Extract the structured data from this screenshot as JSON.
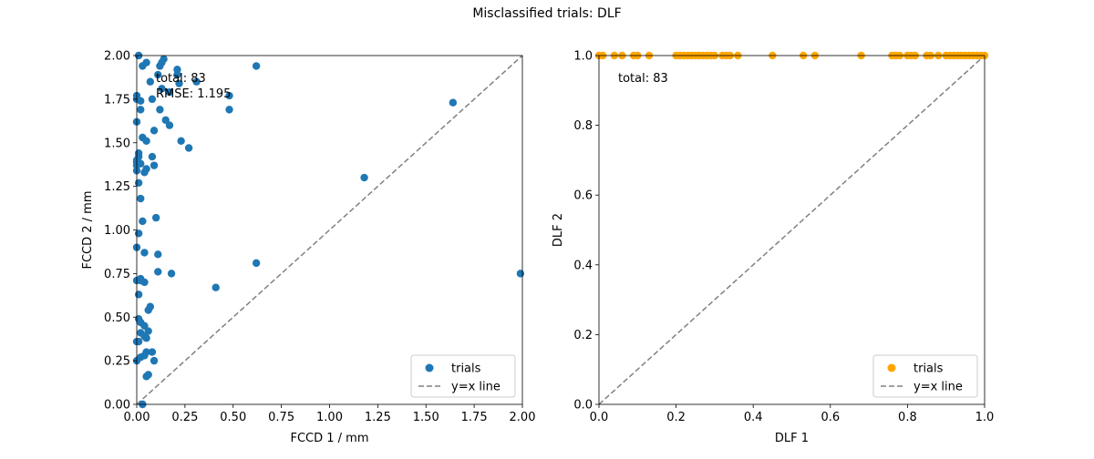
{
  "figure_title": "Misclassified trials: DLF",
  "chart_data": [
    {
      "type": "scatter",
      "xlabel": "FCCD 1 / mm",
      "ylabel": "FCCD 2 / mm",
      "xlim": [
        0,
        2
      ],
      "ylim": [
        0,
        2
      ],
      "xticks": [
        "0.00",
        "0.25",
        "0.50",
        "0.75",
        "1.00",
        "1.25",
        "1.50",
        "1.75",
        "2.00"
      ],
      "yticks": [
        "0.00",
        "0.25",
        "0.50",
        "0.75",
        "1.00",
        "1.25",
        "1.50",
        "1.75",
        "2.00"
      ],
      "annotations": [
        "total: 83",
        "RMSE: 1.195"
      ],
      "legend": {
        "position": "lower-right",
        "entries": [
          "trials",
          "y=x line"
        ]
      },
      "grid": false,
      "colors": {
        "series": "#1f77b4",
        "reference_line": "#808080"
      },
      "series": [
        {
          "name": "trials",
          "points": [
            [
              0.01,
              2.0
            ],
            [
              0.03,
              1.94
            ],
            [
              0.05,
              1.96
            ],
            [
              0.13,
              1.96
            ],
            [
              0.14,
              1.98
            ],
            [
              0.12,
              1.94
            ],
            [
              0.21,
              1.92
            ],
            [
              0.21,
              1.89
            ],
            [
              0.11,
              1.89
            ],
            [
              0.62,
              1.94
            ],
            [
              0.31,
              1.85
            ],
            [
              0.22,
              1.84
            ],
            [
              0.07,
              1.85
            ],
            [
              0.13,
              1.81
            ],
            [
              0.17,
              1.79
            ],
            [
              0.48,
              1.77
            ],
            [
              0.0,
              1.77
            ],
            [
              0.02,
              1.74
            ],
            [
              0.08,
              1.75
            ],
            [
              0.12,
              1.69
            ],
            [
              0.48,
              1.69
            ],
            [
              1.64,
              1.73
            ],
            [
              0.02,
              1.69
            ],
            [
              0.15,
              1.63
            ],
            [
              0.17,
              1.6
            ],
            [
              0.0,
              1.62
            ],
            [
              0.09,
              1.57
            ],
            [
              0.03,
              1.53
            ],
            [
              0.05,
              1.51
            ],
            [
              0.23,
              1.51
            ],
            [
              0.27,
              1.47
            ],
            [
              0.01,
              1.44
            ],
            [
              0.01,
              1.42
            ],
            [
              0.08,
              1.42
            ],
            [
              0.02,
              1.38
            ],
            [
              0.0,
              1.4
            ],
            [
              0.09,
              1.37
            ],
            [
              0.05,
              1.35
            ],
            [
              0.04,
              1.33
            ],
            [
              0.0,
              1.34
            ],
            [
              1.18,
              1.3
            ],
            [
              0.01,
              1.27
            ],
            [
              0.02,
              1.18
            ],
            [
              0.1,
              1.07
            ],
            [
              0.03,
              1.05
            ],
            [
              0.01,
              0.98
            ],
            [
              0.0,
              0.9
            ],
            [
              0.11,
              0.86
            ],
            [
              0.04,
              0.87
            ],
            [
              0.62,
              0.81
            ],
            [
              0.11,
              0.76
            ],
            [
              0.18,
              0.75
            ],
            [
              1.99,
              0.75
            ],
            [
              0.02,
              0.72
            ],
            [
              0.04,
              0.7
            ],
            [
              0.41,
              0.67
            ],
            [
              0.01,
              0.63
            ],
            [
              0.07,
              0.56
            ],
            [
              0.06,
              0.54
            ],
            [
              0.01,
              0.49
            ],
            [
              0.02,
              0.47
            ],
            [
              0.04,
              0.45
            ],
            [
              0.06,
              0.42
            ],
            [
              0.02,
              0.41
            ],
            [
              0.04,
              0.39
            ],
            [
              0.05,
              0.38
            ],
            [
              0.01,
              0.36
            ],
            [
              0.08,
              0.3
            ],
            [
              0.05,
              0.3
            ],
            [
              0.04,
              0.28
            ],
            [
              0.02,
              0.27
            ],
            [
              0.09,
              0.25
            ],
            [
              0.0,
              0.25
            ],
            [
              0.06,
              0.17
            ],
            [
              0.05,
              0.16
            ],
            [
              0.03,
              0.0
            ],
            [
              0.0,
              0.36
            ],
            [
              0.0,
              0.71
            ],
            [
              0.02,
              0.71
            ],
            [
              0.0,
              1.75
            ],
            [
              0.0,
              1.39
            ],
            [
              0.0,
              1.37
            ],
            [
              0.03,
              0.0
            ]
          ]
        }
      ],
      "reference_line": {
        "name": "y=x line",
        "points": [
          [
            0,
            0
          ],
          [
            2,
            2
          ]
        ]
      }
    },
    {
      "type": "scatter",
      "xlabel": "DLF 1",
      "ylabel": "DLF 2",
      "xlim": [
        0,
        1
      ],
      "ylim": [
        0,
        1
      ],
      "xticks": [
        "0.0",
        "0.2",
        "0.4",
        "0.6",
        "0.8",
        "1.0"
      ],
      "yticks": [
        "0.0",
        "0.2",
        "0.4",
        "0.6",
        "0.8",
        "1.0"
      ],
      "annotations": [
        "total: 83"
      ],
      "legend": {
        "position": "lower-right",
        "entries": [
          "trials",
          "y=x line"
        ]
      },
      "grid": false,
      "colors": {
        "series": "#ffa500",
        "reference_line": "#808080"
      },
      "series": [
        {
          "name": "trials",
          "points": [
            [
              0.0,
              1.0
            ],
            [
              0.01,
              1.0
            ],
            [
              0.04,
              1.0
            ],
            [
              0.06,
              1.0
            ],
            [
              0.09,
              1.0
            ],
            [
              0.1,
              1.0
            ],
            [
              0.13,
              1.0
            ],
            [
              0.2,
              1.0
            ],
            [
              0.21,
              1.0
            ],
            [
              0.22,
              1.0
            ],
            [
              0.23,
              1.0
            ],
            [
              0.24,
              1.0
            ],
            [
              0.25,
              1.0
            ],
            [
              0.26,
              1.0
            ],
            [
              0.27,
              1.0
            ],
            [
              0.28,
              1.0
            ],
            [
              0.29,
              1.0
            ],
            [
              0.3,
              1.0
            ],
            [
              0.32,
              1.0
            ],
            [
              0.33,
              1.0
            ],
            [
              0.34,
              1.0
            ],
            [
              0.36,
              1.0
            ],
            [
              0.45,
              1.0
            ],
            [
              0.53,
              1.0
            ],
            [
              0.56,
              1.0
            ],
            [
              0.68,
              1.0
            ],
            [
              0.76,
              1.0
            ],
            [
              0.77,
              1.0
            ],
            [
              0.78,
              1.0
            ],
            [
              0.8,
              1.0
            ],
            [
              0.81,
              1.0
            ],
            [
              0.82,
              1.0
            ],
            [
              0.85,
              1.0
            ],
            [
              0.86,
              1.0
            ],
            [
              0.88,
              1.0
            ],
            [
              0.9,
              1.0
            ],
            [
              0.91,
              1.0
            ],
            [
              0.92,
              1.0
            ],
            [
              0.93,
              1.0
            ],
            [
              0.94,
              1.0
            ],
            [
              0.95,
              1.0
            ],
            [
              0.96,
              1.0
            ],
            [
              0.97,
              1.0
            ],
            [
              0.98,
              1.0
            ],
            [
              0.99,
              1.0
            ],
            [
              1.0,
              1.0
            ]
          ]
        }
      ],
      "reference_line": {
        "name": "y=x line",
        "points": [
          [
            0,
            0
          ],
          [
            1,
            1
          ]
        ]
      }
    }
  ]
}
